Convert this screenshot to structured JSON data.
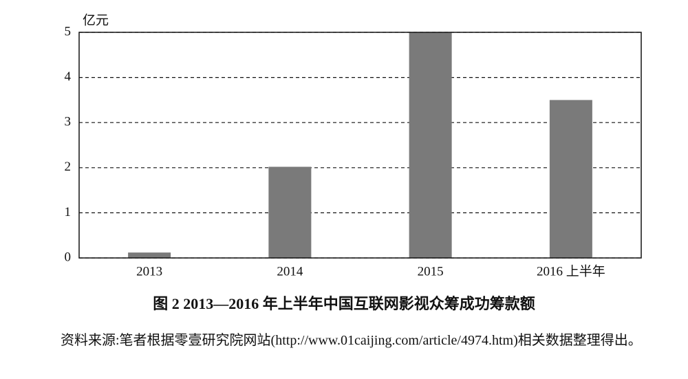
{
  "chart_data": {
    "type": "bar",
    "title": "图 2  2013—2016 年上半年中国互联网影视众筹成功筹款额",
    "y_label": "亿元",
    "categories": [
      "2013",
      "2014",
      "2015",
      "2016 上半年"
    ],
    "values": [
      0.12,
      2.02,
      5.0,
      3.5
    ],
    "color": "#7a7a7a",
    "ylim": [
      0,
      5
    ],
    "yticks": [
      0,
      1,
      2,
      3,
      4,
      5
    ],
    "grid": true,
    "source": "资料来源:笔者根据零壹研究院网站(http://www.01caijing.com/article/4974.htm)相关数据整理得出。"
  }
}
